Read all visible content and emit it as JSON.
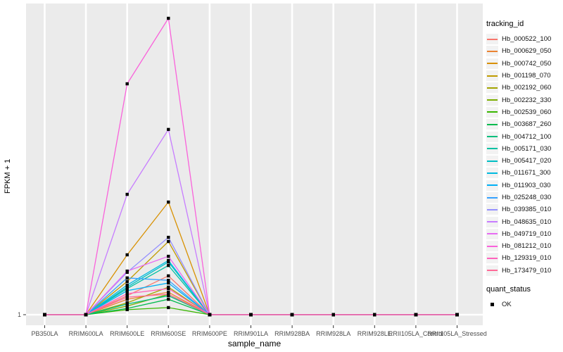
{
  "chart_data": {
    "type": "line",
    "title": "",
    "xlabel": "sample_name",
    "ylabel": "FPKM + 1",
    "x_categories": [
      "PB350LA",
      "RRIM600LA",
      "RRIM600LE",
      "RRIM600SE",
      "RRIM600PE",
      "RRIM901LA",
      "RRIM928BA",
      "RRIM928LA",
      "RRIM928LE",
      "RRII105LA_Control",
      "RRII105LA_Stressed"
    ],
    "y_axis": {
      "tick_labels": [
        "1"
      ],
      "note": "Only the tick '1' is labeled on the y axis; series values below are relative heights (0 = baseline at y tick 1, 1 = tallest peak), estimated from pixels."
    },
    "series": [
      {
        "name": "Hb_000522_100",
        "color": "#F8766D",
        "values": [
          0,
          0,
          0.064,
          0.131,
          0,
          0,
          0,
          0,
          0,
          0,
          0
        ]
      },
      {
        "name": "Hb_000629_050",
        "color": "#EA8331",
        "values": [
          0,
          0,
          0.052,
          0.076,
          0,
          0,
          0,
          0,
          0,
          0,
          0
        ]
      },
      {
        "name": "Hb_000742_050",
        "color": "#D89000",
        "values": [
          0,
          0,
          0.202,
          0.38,
          0,
          0,
          0,
          0,
          0,
          0,
          0
        ]
      },
      {
        "name": "Hb_001198_070",
        "color": "#C09B00",
        "values": [
          0,
          0,
          0.112,
          0.247,
          0,
          0,
          0,
          0,
          0,
          0,
          0
        ]
      },
      {
        "name": "Hb_002192_060",
        "color": "#A3A500",
        "values": [
          0,
          0,
          0.04,
          0.093,
          0,
          0,
          0,
          0,
          0,
          0,
          0
        ]
      },
      {
        "name": "Hb_002232_330",
        "color": "#7CAE00",
        "values": [
          0,
          0,
          0.029,
          0.069,
          0,
          0,
          0,
          0,
          0,
          0,
          0
        ]
      },
      {
        "name": "Hb_002539_060",
        "color": "#39B600",
        "values": [
          0,
          0,
          0.017,
          0.024,
          0,
          0,
          0,
          0,
          0,
          0,
          0
        ]
      },
      {
        "name": "Hb_003687_260",
        "color": "#00BB4E",
        "values": [
          0,
          0,
          0.021,
          0.052,
          0,
          0,
          0,
          0,
          0,
          0,
          0
        ]
      },
      {
        "name": "Hb_004712_100",
        "color": "#00BF7D",
        "values": [
          0,
          0,
          0.036,
          0.064,
          0,
          0,
          0,
          0,
          0,
          0,
          0
        ]
      },
      {
        "name": "Hb_005171_030",
        "color": "#00C1A3",
        "values": [
          0,
          0,
          0.088,
          0.166,
          0,
          0,
          0,
          0,
          0,
          0,
          0
        ]
      },
      {
        "name": "Hb_005417_020",
        "color": "#00BFC4",
        "values": [
          0,
          0,
          0.093,
          0.178,
          0,
          0,
          0,
          0,
          0,
          0,
          0
        ]
      },
      {
        "name": "Hb_011671_300",
        "color": "#00BAE0",
        "values": [
          0,
          0,
          0.1,
          0.183,
          0,
          0,
          0,
          0,
          0,
          0,
          0
        ]
      },
      {
        "name": "Hb_011903_030",
        "color": "#00B0F6",
        "values": [
          0,
          0,
          0.081,
          0.107,
          0,
          0,
          0,
          0,
          0,
          0,
          0
        ]
      },
      {
        "name": "Hb_025248_030",
        "color": "#35A2FF",
        "values": [
          0,
          0,
          0.124,
          0.116,
          0,
          0,
          0,
          0,
          0,
          0,
          0
        ]
      },
      {
        "name": "Hb_039385_010",
        "color": "#9590FF",
        "values": [
          0,
          0,
          0.143,
          0.261,
          0,
          0,
          0,
          0,
          0,
          0,
          0
        ]
      },
      {
        "name": "Hb_048635_010",
        "color": "#C77CFF",
        "values": [
          0,
          0,
          0.406,
          0.625,
          0,
          0,
          0,
          0,
          0,
          0,
          0
        ]
      },
      {
        "name": "Hb_049719_010",
        "color": "#E76BF3",
        "values": [
          0,
          0,
          0.147,
          0.197,
          0,
          0,
          0,
          0,
          0,
          0,
          0
        ]
      },
      {
        "name": "Hb_081212_010",
        "color": "#FA62DB",
        "values": [
          0,
          0,
          0.779,
          1.0,
          0,
          0,
          0,
          0,
          0,
          0,
          0
        ]
      },
      {
        "name": "Hb_129319_010",
        "color": "#FF62BC",
        "values": [
          0,
          0,
          0.071,
          0.088,
          0,
          0,
          0,
          0,
          0,
          0,
          0
        ]
      },
      {
        "name": "Hb_173479_010",
        "color": "#FF6A98",
        "values": [
          0,
          0,
          0.059,
          0.069,
          0,
          0,
          0,
          0,
          0,
          0,
          0
        ]
      }
    ],
    "legend": {
      "position": "right",
      "color_title": "tracking_id",
      "shape_title": "quant_status",
      "shape_items": [
        {
          "label": "OK",
          "marker": "filled-black-square"
        }
      ]
    },
    "style": {
      "panel_bg": "#EBEBEB",
      "gridline_color": "#FFFFFF",
      "marker_color": "#000000",
      "tick_color": "#333333",
      "tick_label_color": "#4D4D4D",
      "legend_key_bg": "#F2F2F2"
    }
  }
}
